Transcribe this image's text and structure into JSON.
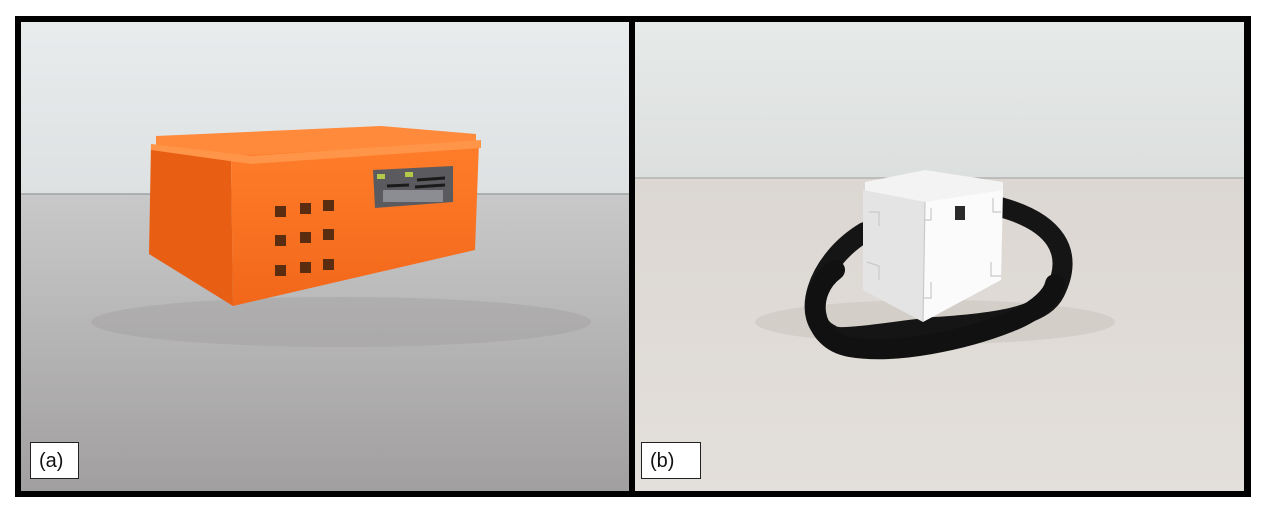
{
  "panels": [
    {
      "id": "a",
      "label": "(a)"
    },
    {
      "id": "b",
      "label": "(b)"
    }
  ]
}
